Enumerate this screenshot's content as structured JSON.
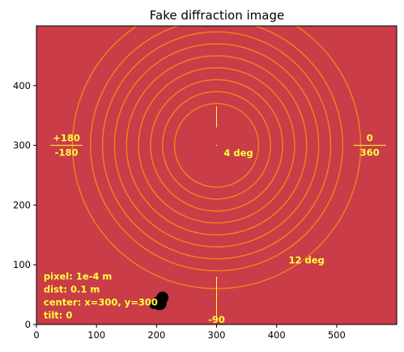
{
  "chart_data": {
    "type": "image",
    "title": "Fake diffraction image",
    "xlim": [
      0,
      600
    ],
    "ylim": [
      0,
      500
    ],
    "xticks": [
      0,
      100,
      200,
      300,
      400,
      500
    ],
    "yticks": [
      0,
      100,
      200,
      300,
      400
    ],
    "grid": false,
    "background_color": "#c93c48",
    "ring_color": "#f07a20",
    "annotation_color": "#ffff3c",
    "center": [
      300,
      300
    ],
    "rings": [
      {
        "radius": 70
      },
      {
        "radius": 90
      },
      {
        "radius": 110
      },
      {
        "radius": 130
      },
      {
        "radius": 150
      },
      {
        "radius": 170
      },
      {
        "radius": 190
      },
      {
        "radius": 210
      },
      {
        "radius": 240
      }
    ],
    "azimuth_marks": [
      {
        "top": "+180",
        "bottom": "-180",
        "x": 50,
        "y": 300
      },
      {
        "top": "0",
        "bottom": "360",
        "x": 555,
        "y": 300
      },
      {
        "top": "",
        "bottom": "-90",
        "x": 300,
        "y": 0
      }
    ],
    "ring_labels": [
      {
        "text": "4 deg",
        "x": 312,
        "y": 282
      },
      {
        "text": "12 deg",
        "x": 420,
        "y": 102
      }
    ],
    "info_lines": [
      "pixel: 1e-4 m",
      "dist: 0.1 m",
      "center: x=300, y=300",
      "tilt: 0"
    ],
    "beamstop": [
      {
        "x": 210,
        "y": 45,
        "r": 10
      },
      {
        "x": 205,
        "y": 36,
        "r": 12
      },
      {
        "x": 195,
        "y": 33,
        "r": 7
      }
    ]
  }
}
